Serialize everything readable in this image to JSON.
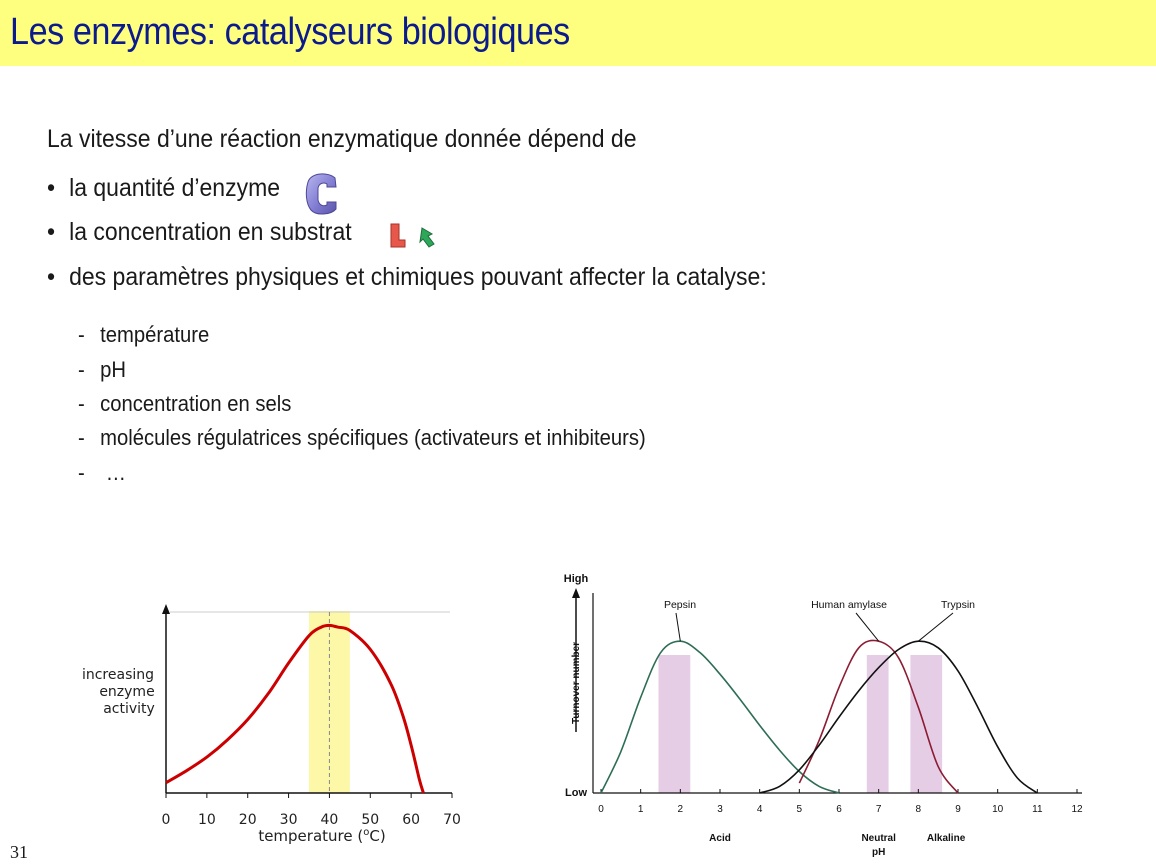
{
  "title": "Les enzymes: catalyseurs biologiques",
  "intro": "La vitesse d’une réaction enzymatique donnée dépend de",
  "bullets": [
    "la quantité d’enzyme",
    "la concentration en substrat",
    "des paramètres physiques et chimiques pouvant affecter la catalyse:"
  ],
  "sub_items": [
    "température",
    "pH",
    "concentration en sels",
    "molécules régulatrices spécifiques (activateurs et inhibiteurs)",
    " …"
  ],
  "icons": {
    "enzyme": "enzyme-c-shape-icon",
    "substrates": [
      "red-boot-shape-icon",
      "green-arrow-shape-icon"
    ]
  },
  "page_number": "31",
  "chart_data": [
    {
      "type": "line",
      "ylabel": "increasing enzyme activity",
      "xlabel_prefix": "temperature (",
      "xlabel_unit_sup": "o",
      "xlabel_suffix": "C)",
      "xlim": [
        0,
        70
      ],
      "ylim": [
        0,
        1
      ],
      "x_ticks": [
        0,
        10,
        20,
        30,
        40,
        50,
        60,
        70
      ],
      "highlight_band": [
        35,
        45
      ],
      "optimum_line_x": 40,
      "series": [
        {
          "color": "#cc0000",
          "x": [
            0,
            5,
            10,
            15,
            20,
            25,
            30,
            35,
            38,
            40,
            42,
            45,
            50,
            55,
            58,
            60,
            62,
            63
          ],
          "y": [
            0.06,
            0.13,
            0.21,
            0.31,
            0.43,
            0.58,
            0.76,
            0.92,
            0.97,
            0.98,
            0.97,
            0.95,
            0.84,
            0.64,
            0.45,
            0.28,
            0.08,
            0.0
          ]
        }
      ]
    },
    {
      "type": "line",
      "ylabel": "Turnover number",
      "y_high_label": "High",
      "y_low_label": "Low",
      "xlim": [
        0,
        12
      ],
      "ylim": [
        0,
        1
      ],
      "x_ticks": [
        0,
        1,
        2,
        3,
        4,
        5,
        6,
        7,
        8,
        9,
        10,
        11,
        12
      ],
      "region_labels": [
        {
          "text": "Acid",
          "x": 3
        },
        {
          "text": "Neutral",
          "x": 7
        },
        {
          "text": "pH",
          "x": 7
        },
        {
          "text": "Alkaline",
          "x": 8.7
        }
      ],
      "bands": [
        [
          1.45,
          2.25
        ],
        [
          6.7,
          7.25
        ],
        [
          7.8,
          8.6
        ]
      ],
      "series": [
        {
          "name": "Pepsin",
          "color": "#2e6e55",
          "x": [
            0,
            0.5,
            1,
            1.5,
            2,
            2.5,
            3,
            3.5,
            4,
            4.5,
            5,
            5.5,
            6
          ],
          "y": [
            0.0,
            0.25,
            0.58,
            0.85,
            0.92,
            0.85,
            0.72,
            0.57,
            0.41,
            0.26,
            0.13,
            0.04,
            0.0
          ]
        },
        {
          "name": "Human amylase",
          "color": "#8c1c33",
          "x": [
            5,
            5.5,
            6,
            6.5,
            7,
            7.5,
            8,
            8.5,
            9
          ],
          "y": [
            0.06,
            0.32,
            0.64,
            0.88,
            0.92,
            0.82,
            0.52,
            0.16,
            0.0
          ]
        },
        {
          "name": "Trypsin",
          "color": "#111111",
          "x": [
            4,
            4.5,
            5,
            5.5,
            6,
            6.5,
            7,
            7.5,
            8,
            8.5,
            9,
            9.5,
            10,
            10.5,
            11
          ],
          "y": [
            0.0,
            0.04,
            0.14,
            0.29,
            0.46,
            0.62,
            0.76,
            0.87,
            0.92,
            0.88,
            0.74,
            0.52,
            0.28,
            0.09,
            0.0
          ]
        }
      ]
    }
  ]
}
